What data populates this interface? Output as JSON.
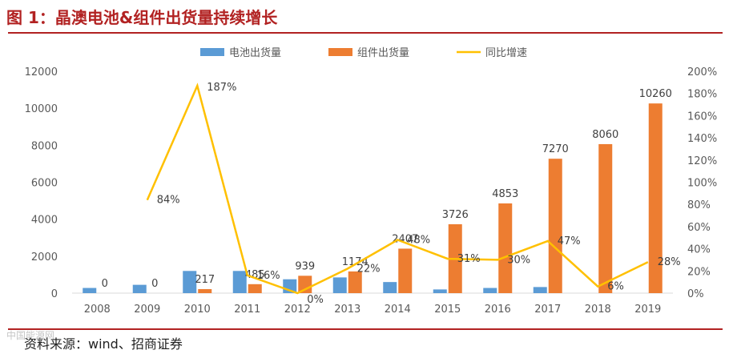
{
  "title": "图 1：晶澳电池&组件出货量持续增长",
  "source": "资料来源：wind、招商证券",
  "watermark": "中国能源网",
  "colors": {
    "cell": "#5b9bd5",
    "module": "#ed7d31",
    "growth": "#ffc000",
    "accent": "#b22222"
  },
  "chart_data": {
    "type": "bar",
    "categories": [
      "2008",
      "2009",
      "2010",
      "2011",
      "2012",
      "2013",
      "2014",
      "2015",
      "2016",
      "2017",
      "2018",
      "2019"
    ],
    "series": [
      {
        "name": "电池出货量",
        "kind": "bar",
        "axis": "left",
        "values": [
          280,
          450,
          1200,
          1200,
          750,
          850,
          600,
          200,
          280,
          330,
          0,
          0
        ]
      },
      {
        "name": "组件出货量",
        "kind": "bar",
        "axis": "left",
        "values": [
          0,
          0,
          217,
          485,
          939,
          1174,
          2407,
          3726,
          4853,
          7270,
          8060,
          10260
        ],
        "labels": [
          "0",
          "0",
          "217",
          "485",
          "939",
          "1174",
          "2407",
          "3726",
          "4853",
          "7270",
          "8060",
          "10260"
        ]
      },
      {
        "name": "同比增速",
        "kind": "line",
        "axis": "right",
        "values": [
          null,
          84,
          187,
          16,
          0,
          22,
          48,
          31,
          30,
          47,
          6,
          28
        ],
        "labels": [
          "",
          "84%",
          "187%",
          "16%",
          "0%",
          "22%",
          "48%",
          "31%",
          "30%",
          "47%",
          "6%",
          "28%"
        ]
      }
    ],
    "left_axis": {
      "ylim": [
        0,
        12000
      ],
      "ticks": [
        "0",
        "2000",
        "4000",
        "6000",
        "8000",
        "10000",
        "12000"
      ]
    },
    "right_axis": {
      "ylim": [
        0,
        200
      ],
      "ticks": [
        "0%",
        "20%",
        "40%",
        "60%",
        "80%",
        "100%",
        "120%",
        "140%",
        "160%",
        "180%",
        "200%"
      ]
    },
    "legend_position": "top",
    "grid": false
  }
}
